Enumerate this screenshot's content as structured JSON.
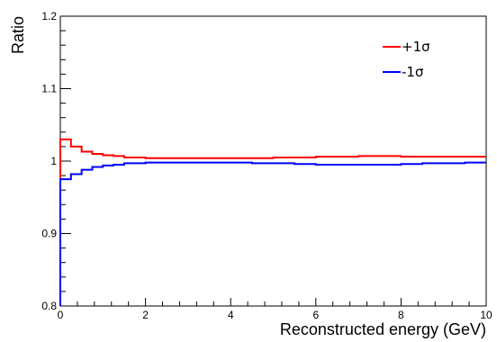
{
  "chart_data": {
    "type": "line",
    "style": "step-histogram",
    "xlabel": "Reconstructed energy (GeV)",
    "ylabel": "Ratio",
    "xlim": [
      0,
      10
    ],
    "ylim": [
      0.8,
      1.2
    ],
    "x_ticks": [
      "0",
      "2",
      "4",
      "6",
      "8",
      "10"
    ],
    "y_ticks": [
      "0.8",
      "0.9",
      "1",
      "1.1",
      "1.2"
    ],
    "grid": false,
    "legend_position": "top-right",
    "x_edges": [
      0,
      0.25,
      0.5,
      0.75,
      1.0,
      1.25,
      1.5,
      2.0,
      2.5,
      3.0,
      3.5,
      4.0,
      4.5,
      5.0,
      5.5,
      6.0,
      6.5,
      7.0,
      7.5,
      8.0,
      8.5,
      9.0,
      9.5,
      10.0
    ],
    "series": [
      {
        "name": "+1σ",
        "color": "#ff0000",
        "values": [
          1.03,
          1.02,
          1.013,
          1.01,
          1.008,
          1.007,
          1.005,
          1.004,
          1.004,
          1.004,
          1.004,
          1.004,
          1.004,
          1.005,
          1.005,
          1.006,
          1.006,
          1.007,
          1.007,
          1.006,
          1.006,
          1.006,
          1.006
        ]
      },
      {
        "name": "-1σ",
        "color": "#0000ff",
        "values": [
          0.975,
          0.982,
          0.988,
          0.992,
          0.994,
          0.995,
          0.997,
          0.998,
          0.998,
          0.998,
          0.998,
          0.998,
          0.997,
          0.997,
          0.996,
          0.995,
          0.995,
          0.995,
          0.995,
          0.996,
          0.997,
          0.997,
          0.998
        ]
      }
    ]
  }
}
